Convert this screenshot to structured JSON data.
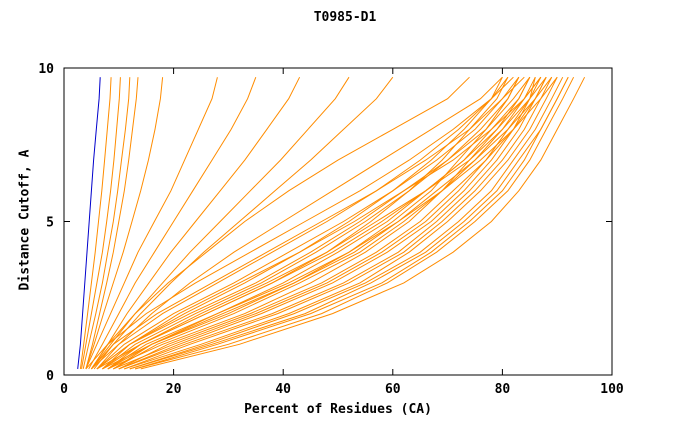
{
  "chart_data": {
    "type": "line",
    "title": "T0985-D1",
    "xlabel": "Percent of Residues (CA)",
    "ylabel": "Distance Cutoff, A",
    "xlim": [
      0,
      100
    ],
    "ylim": [
      0,
      10
    ],
    "x_ticks": [
      0,
      20,
      40,
      60,
      80,
      100
    ],
    "y_ticks": [
      0,
      5,
      10
    ],
    "grid": false,
    "legend": false,
    "colors": {
      "models": "#ff8c00",
      "reference": "#0000cc",
      "frame": "#000000"
    },
    "y_levels": [
      0.2,
      1,
      2,
      3,
      4,
      5,
      6,
      7,
      8,
      9,
      9.7
    ],
    "series": [
      {
        "name": "curve-01",
        "color": "#ff8c00",
        "x": [
          3,
          3.6,
          4.3,
          5,
          5.7,
          6.3,
          6.9,
          7.4,
          7.9,
          8.4,
          8.6
        ]
      },
      {
        "name": "curve-02",
        "color": "#ff8c00",
        "x": [
          3.2,
          4,
          5,
          6,
          7,
          7.8,
          8.5,
          9.1,
          9.6,
          10.1,
          10.3
        ]
      },
      {
        "name": "curve-03",
        "color": "#ff8c00",
        "x": [
          3.5,
          4.5,
          5.8,
          7,
          8,
          9,
          9.8,
          10.5,
          11.2,
          11.8,
          12
        ]
      },
      {
        "name": "curve-04",
        "color": "#ff8c00",
        "x": [
          4,
          5.2,
          6.5,
          7.8,
          9,
          10,
          11,
          11.8,
          12.5,
          13.2,
          13.5
        ]
      },
      {
        "name": "curve-05",
        "color": "#ff8c00",
        "x": [
          4,
          5.5,
          7.2,
          9,
          10.8,
          12.4,
          14,
          15.4,
          16.6,
          17.6,
          18
        ]
      },
      {
        "name": "curve-06",
        "color": "#ff8c00",
        "x": [
          4,
          6,
          8.5,
          11,
          13.5,
          16.5,
          19.5,
          22,
          24.5,
          27,
          28
        ]
      },
      {
        "name": "curve-07",
        "color": "#ff8c00",
        "x": [
          4.5,
          7,
          10,
          13,
          16.5,
          20,
          23.5,
          27,
          30.5,
          33.5,
          35
        ]
      },
      {
        "name": "curve-08",
        "color": "#ff8c00",
        "x": [
          5,
          8,
          11.5,
          15.5,
          19.5,
          24,
          28.5,
          33,
          37,
          41,
          43
        ]
      },
      {
        "name": "curve-09",
        "color": "#ff8c00",
        "x": [
          5,
          8.5,
          13,
          18,
          23,
          28.5,
          34,
          39.5,
          44.5,
          49.5,
          52
        ]
      },
      {
        "name": "curve-10",
        "color": "#ff8c00",
        "x": [
          5.5,
          9,
          14,
          19.5,
          25.5,
          32,
          38.5,
          45,
          51,
          57,
          60
        ]
      },
      {
        "name": "curve-11",
        "color": "#ff8c00",
        "x": [
          5,
          8,
          13,
          19,
          26,
          33,
          41,
          50,
          60,
          70,
          74
        ]
      },
      {
        "name": "curve-12",
        "color": "#ff8c00",
        "x": [
          6,
          10,
          16,
          23,
          31,
          40,
          49,
          58,
          67,
          76,
          80
        ]
      },
      {
        "name": "curve-13",
        "color": "#ff8c00",
        "x": [
          6,
          14,
          26,
          38,
          48,
          56,
          63,
          69,
          74,
          79,
          81
        ]
      },
      {
        "name": "curve-14",
        "color": "#ff8c00",
        "x": [
          7,
          16,
          30,
          42,
          52,
          60,
          67,
          72,
          77,
          81,
          83
        ]
      },
      {
        "name": "curve-15",
        "color": "#ff8c00",
        "x": [
          8,
          18,
          33,
          45,
          55,
          63,
          69,
          74,
          79,
          83,
          85
        ]
      },
      {
        "name": "curve-16",
        "color": "#ff8c00",
        "x": [
          9,
          20,
          35,
          48,
          58,
          66,
          72,
          77,
          81,
          85,
          87
        ]
      },
      {
        "name": "curve-17",
        "color": "#ff8c00",
        "x": [
          10,
          22,
          38,
          51,
          61,
          68,
          74,
          79,
          83,
          86,
          88
        ]
      },
      {
        "name": "curve-18",
        "color": "#ff8c00",
        "x": [
          11,
          25,
          41,
          54,
          63,
          70,
          76,
          81,
          85,
          88,
          90
        ]
      },
      {
        "name": "curve-19",
        "color": "#ff8c00",
        "x": [
          12,
          27,
          44,
          56,
          66,
          73,
          79,
          83,
          87,
          90,
          92
        ]
      },
      {
        "name": "curve-20",
        "color": "#ff8c00",
        "x": [
          13,
          30,
          47,
          59,
          68,
          75,
          81,
          85,
          88,
          91,
          93
        ]
      },
      {
        "name": "curve-21",
        "color": "#ff8c00",
        "x": [
          14,
          32,
          49,
          62,
          71,
          78,
          83,
          87,
          90,
          93,
          95
        ]
      },
      {
        "name": "curve-22",
        "color": "#ff8c00",
        "x": [
          6,
          12,
          22,
          33,
          43,
          52,
          60,
          67,
          73,
          78,
          80
        ]
      },
      {
        "name": "curve-23",
        "color": "#ff8c00",
        "x": [
          7,
          13,
          24,
          36,
          46,
          55,
          63,
          70,
          76,
          81,
          83
        ]
      },
      {
        "name": "curve-24",
        "color": "#ff8c00",
        "x": [
          8,
          15,
          28,
          40,
          50,
          59,
          66,
          73,
          78,
          83,
          85
        ]
      },
      {
        "name": "curve-25",
        "color": "#ff8c00",
        "x": [
          9,
          17,
          31,
          43,
          54,
          62,
          69,
          75,
          80,
          84,
          86
        ]
      },
      {
        "name": "curve-26",
        "color": "#ff8c00",
        "x": [
          10,
          19,
          34,
          47,
          57,
          65,
          71,
          77,
          82,
          86,
          88
        ]
      },
      {
        "name": "curve-27",
        "color": "#ff8c00",
        "x": [
          5,
          10,
          18,
          28,
          38,
          48,
          57,
          65,
          72,
          78,
          81
        ]
      },
      {
        "name": "curve-28",
        "color": "#ff8c00",
        "x": [
          6,
          11,
          20,
          31,
          41,
          51,
          60,
          68,
          75,
          80,
          83
        ]
      },
      {
        "name": "curve-29",
        "color": "#ff8c00",
        "x": [
          7,
          12,
          23,
          35,
          45,
          54,
          62,
          70,
          77,
          82,
          85
        ]
      },
      {
        "name": "curve-30",
        "color": "#ff8c00",
        "x": [
          8,
          14,
          26,
          38,
          49,
          58,
          66,
          73,
          79,
          84,
          87
        ]
      },
      {
        "name": "curve-31",
        "color": "#ff8c00",
        "x": [
          9,
          16,
          29,
          42,
          53,
          61,
          68,
          75,
          81,
          86,
          89
        ]
      },
      {
        "name": "curve-32",
        "color": "#ff8c00",
        "x": [
          4,
          8,
          15,
          24,
          34,
          44,
          54,
          63,
          71,
          78,
          82
        ]
      },
      {
        "name": "curve-33",
        "color": "#ff8c00",
        "x": [
          5,
          9,
          17,
          27,
          37,
          47,
          57,
          66,
          74,
          80,
          84
        ]
      },
      {
        "name": "curve-34",
        "color": "#ff8c00",
        "x": [
          6,
          12,
          21,
          32,
          43,
          53,
          62,
          71,
          78,
          84,
          87
        ]
      },
      {
        "name": "curve-35",
        "color": "#ff8c00",
        "x": [
          7,
          14,
          25,
          37,
          48,
          57,
          66,
          74,
          80,
          85,
          88
        ]
      },
      {
        "name": "curve-36",
        "color": "#ff8c00",
        "x": [
          8,
          16,
          28,
          41,
          52,
          61,
          69,
          76,
          82,
          87,
          90
        ]
      },
      {
        "name": "curve-37",
        "color": "#ff8c00",
        "x": [
          10,
          21,
          36,
          49,
          59,
          67,
          73,
          78,
          82,
          85,
          86
        ]
      },
      {
        "name": "curve-38",
        "color": "#ff8c00",
        "x": [
          11,
          23,
          39,
          52,
          62,
          69,
          75,
          80,
          84,
          87,
          89
        ]
      },
      {
        "name": "curve-39",
        "color": "#ff8c00",
        "x": [
          12,
          26,
          42,
          55,
          65,
          72,
          78,
          82,
          86,
          89,
          91
        ]
      },
      {
        "name": "curve-40",
        "color": "#ff8c00",
        "x": [
          13,
          28,
          45,
          58,
          67,
          74,
          80,
          84,
          87,
          90,
          92
        ]
      },
      {
        "name": "curve-blue",
        "color": "#0000cc",
        "x": [
          2.5,
          3,
          3.4,
          3.8,
          4.2,
          4.6,
          5,
          5.4,
          5.9,
          6.4,
          6.6
        ]
      }
    ]
  }
}
